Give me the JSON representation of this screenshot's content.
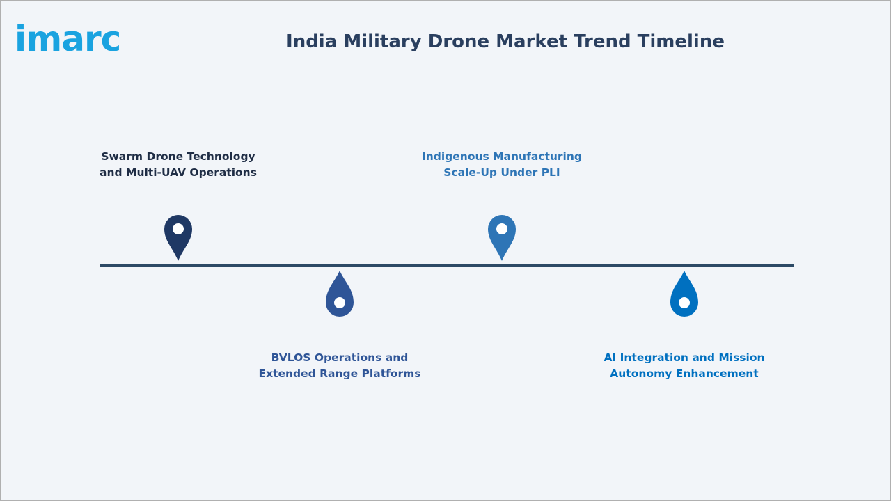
{
  "logo": "imarc",
  "title": "India Military Drone Market Trend Timeline",
  "nodes": [
    {
      "label": "Swarm Drone Technology and Multi-UAV Operations",
      "color": "#1f3864"
    },
    {
      "label": "BVLOS Operations and Extended Range Platforms",
      "color": "#2f5597"
    },
    {
      "label": "Indigenous Manufacturing Scale-Up Under PLI",
      "color": "#2e75b6"
    },
    {
      "label": "AI Integration and Mission Autonomy Enhancement",
      "color": "#0070c0"
    }
  ]
}
